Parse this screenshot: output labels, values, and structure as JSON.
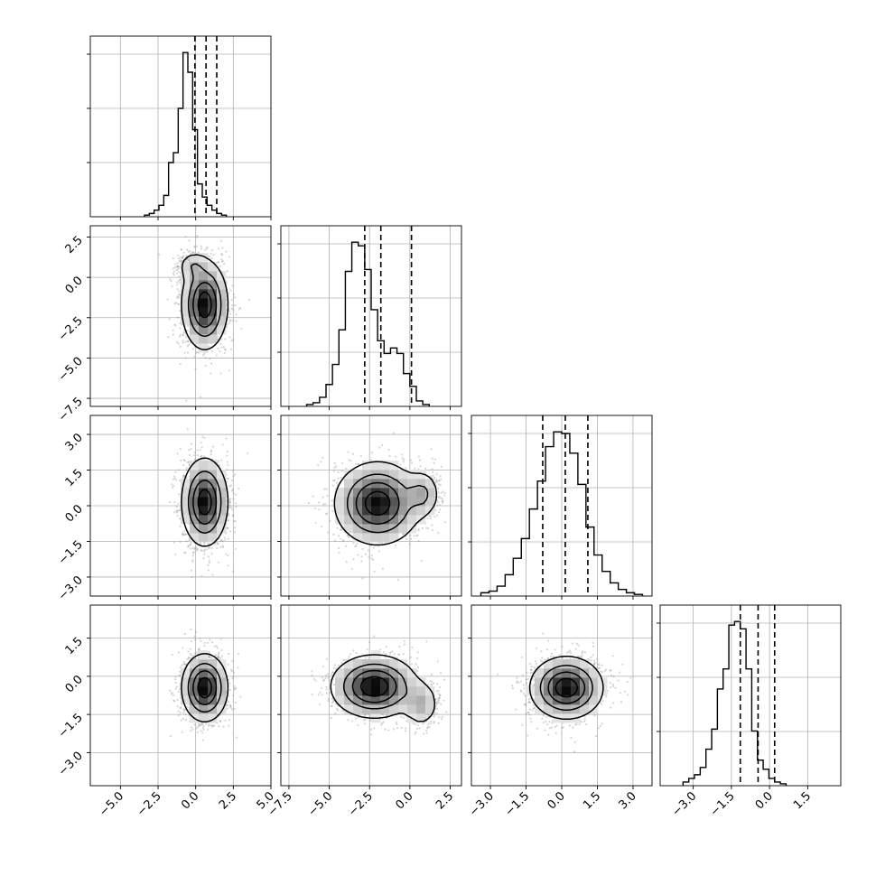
{
  "chart_data": {
    "type": "corner",
    "grid": true,
    "quantile_lines": "dashed",
    "params": [
      {
        "range": [
          -7.0,
          5.0
        ],
        "ticks": [
          -5.0,
          -2.5,
          0.0,
          2.5,
          5.0
        ],
        "tick_labels": [
          "−5.0",
          "−2.5",
          "0.0",
          "2.5",
          "5.0"
        ],
        "quantiles": [
          -0.05,
          0.69,
          1.4
        ],
        "hist": {
          "x_start": -3.4,
          "bin_width": 0.32,
          "counts": [
            1,
            2,
            4,
            7,
            13,
            33,
            39,
            66,
            100,
            88,
            53,
            20,
            12,
            7,
            4,
            2,
            1
          ]
        }
      },
      {
        "range": [
          -8.0,
          3.2
        ],
        "ticks": [
          -7.5,
          -5.0,
          -2.5,
          0.0,
          2.5
        ],
        "tick_labels": [
          "−7.5",
          "−5.0",
          "−2.5",
          "0.0",
          "2.5"
        ],
        "quantiles": [
          -2.8,
          -1.8,
          0.1
        ],
        "hist": {
          "x_start": -6.4,
          "bin_width": 0.4,
          "counts": [
            1,
            2,
            5,
            12,
            23,
            42,
            74,
            90,
            88,
            75,
            53,
            36,
            29,
            32,
            29,
            18,
            11,
            3,
            1
          ]
        }
      },
      {
        "range": [
          -3.8,
          3.8
        ],
        "ticks": [
          -3.0,
          -1.5,
          0.0,
          1.5,
          3.0
        ],
        "tick_labels": [
          "−3.0",
          "−1.5",
          "0.0",
          "1.5",
          "3.0"
        ],
        "quantiles": [
          -0.8,
          0.15,
          1.1
        ],
        "hist": {
          "x_start": -3.4,
          "bin_width": 0.34,
          "counts": [
            2,
            3,
            6,
            13,
            23,
            35,
            53,
            70,
            91,
            100,
            99,
            87,
            68,
            42,
            25,
            15,
            8,
            4,
            2,
            1
          ]
        }
      },
      {
        "range": [
          -4.3,
          2.8
        ],
        "ticks": [
          -3.0,
          -1.5,
          0.0,
          1.5
        ],
        "tick_labels": [
          "−3.0",
          "−1.5",
          "0.0",
          "1.5"
        ],
        "quantiles": [
          -1.15,
          -0.45,
          0.2
        ],
        "hist": {
          "x_start": -3.4,
          "bin_width": 0.225,
          "counts": [
            2,
            4,
            6,
            10,
            20,
            31,
            53,
            64,
            88,
            90,
            86,
            64,
            30,
            14,
            9,
            4,
            2,
            1
          ]
        }
      }
    ],
    "pairs": [
      {
        "row": 1,
        "col": 0,
        "hist_ticks_y": [
          2.5,
          0.0,
          -2.5,
          -5.0,
          -7.5
        ],
        "y_tick_labels": [
          "2.5",
          "0.0",
          "−2.5",
          "−5.0",
          "−7.5"
        ],
        "blobs": [
          {
            "cx": 0.6,
            "cy": -1.7,
            "sx": 0.75,
            "sy": 1.35,
            "w": 1.0
          },
          {
            "cx": -0.2,
            "cy": 0.7,
            "sx": 0.5,
            "sy": 0.45,
            "w": 0.25
          }
        ]
      },
      {
        "row": 2,
        "col": 0,
        "y_tick_labels": [
          "3.0",
          "1.5",
          "0.0",
          "−1.5",
          "−3.0"
        ],
        "blobs": [
          {
            "cx": 0.6,
            "cy": 0.15,
            "sx": 0.75,
            "sy": 0.9,
            "w": 1.0
          }
        ]
      },
      {
        "row": 2,
        "col": 1,
        "blobs": [
          {
            "cx": -2.0,
            "cy": 0.1,
            "sx": 1.3,
            "sy": 0.85,
            "w": 1.0
          },
          {
            "cx": 0.8,
            "cy": 0.5,
            "sx": 0.55,
            "sy": 0.5,
            "w": 0.35
          }
        ]
      },
      {
        "row": 3,
        "col": 0,
        "y_tick_labels": [
          "1.5",
          "0.0",
          "−1.5",
          "−3.0"
        ],
        "blobs": [
          {
            "cx": 0.6,
            "cy": -0.45,
            "sx": 0.75,
            "sy": 0.65,
            "w": 1.0
          }
        ]
      },
      {
        "row": 3,
        "col": 1,
        "blobs": [
          {
            "cx": -2.2,
            "cy": -0.4,
            "sx": 1.3,
            "sy": 0.6,
            "w": 1.0
          },
          {
            "cx": 0.7,
            "cy": -1.1,
            "sx": 0.55,
            "sy": 0.45,
            "w": 0.35
          }
        ]
      },
      {
        "row": 3,
        "col": 2,
        "blobs": [
          {
            "cx": 0.2,
            "cy": -0.45,
            "sx": 0.75,
            "sy": 0.6,
            "w": 1.0
          }
        ]
      }
    ]
  }
}
